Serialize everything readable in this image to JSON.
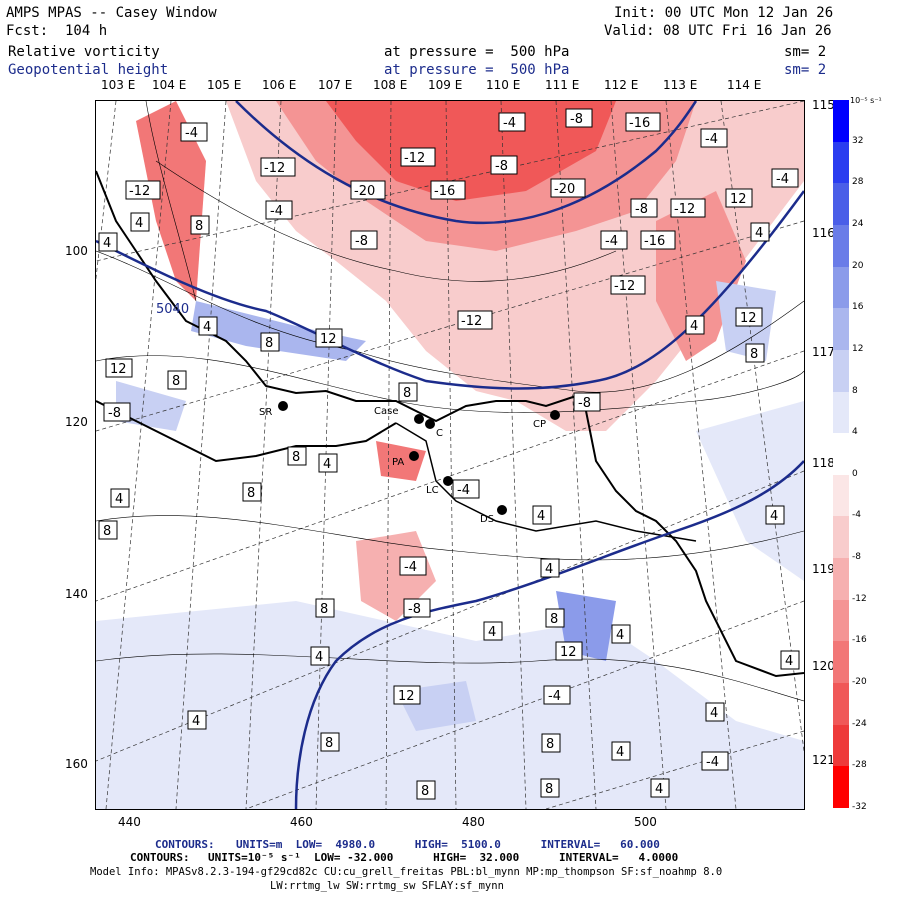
{
  "header": {
    "title": "AMPS MPAS -- Casey Window",
    "init": "Init: 00 UTC Mon 12 Jan 26",
    "fcst": "Fcst:  104 h",
    "valid": "Valid: 08 UTC Fri 16 Jan 26",
    "field1": "Relative vorticity",
    "field1_level": "at pressure =  500 hPa",
    "field1_sm": "sm= 2",
    "field2": "Geopotential height",
    "field2_level": "at pressure =  500 hPa",
    "field2_sm": "sm= 2"
  },
  "map": {
    "lon_labels": [
      "103 E",
      "104 E",
      "105 E",
      "106 E",
      "107 E",
      "108 E",
      "109 E",
      "110 E",
      "111 E",
      "112 E",
      "113 E",
      "114 E"
    ],
    "lat_right_labels": [
      "115 E",
      "116 E",
      "117 E",
      "118 E",
      "119 E",
      "120 E",
      "121 E"
    ],
    "x_ticks": [
      "440",
      "460",
      "480",
      "500"
    ],
    "y_ticks": [
      "100",
      "120",
      "140",
      "160"
    ],
    "height_contour_label": "5040",
    "stations": [
      "SR",
      "Case",
      "C",
      "PA",
      "LC",
      "DS",
      "CP"
    ],
    "vorticity_labels": [
      "-4",
      "-8",
      "-12",
      "-16",
      "-20",
      "4",
      "8",
      "12"
    ]
  },
  "colorbar": {
    "units": "10⁻⁵ s⁻¹",
    "ticks": [
      "32",
      "28",
      "24",
      "20",
      "16",
      "12",
      "8",
      "4",
      "0",
      "-4",
      "-8",
      "-12",
      "-16",
      "-20",
      "-24",
      "-28",
      "-32"
    ],
    "colors": [
      "#0000ff",
      "#2a3df0",
      "#4a5ee8",
      "#6a7ce8",
      "#8b9bea",
      "#aab6ee",
      "#c8d0f3",
      "#e4e8f9",
      "#ffffff",
      "#fbe6e6",
      "#f8cccc",
      "#f6b0b0",
      "#f49494",
      "#f27777",
      "#f05858",
      "#ee3a3a",
      "#ff0000"
    ]
  },
  "footer": {
    "line1_label": "CONTOURS:",
    "line1": "UNITS=m  LOW=  4980.0      HIGH=  5100.0      INTERVAL=   60.000",
    "line2_label": "CONTOURS:",
    "line2": "UNITS=10⁻⁵ s⁻¹  LOW= -32.000      HIGH=  32.000      INTERVAL=   4.0000",
    "model_info": "Model Info: MPASv8.2.3-194-gf29cd82c CU:cu_grell_freitas PBL:bl_mynn MP:mp_thompson SF:sf_noahmp 8.0",
    "model_info2": "LW:rrtmg_lw SW:rrtmg_sw SFLAY:sf_mynn"
  }
}
